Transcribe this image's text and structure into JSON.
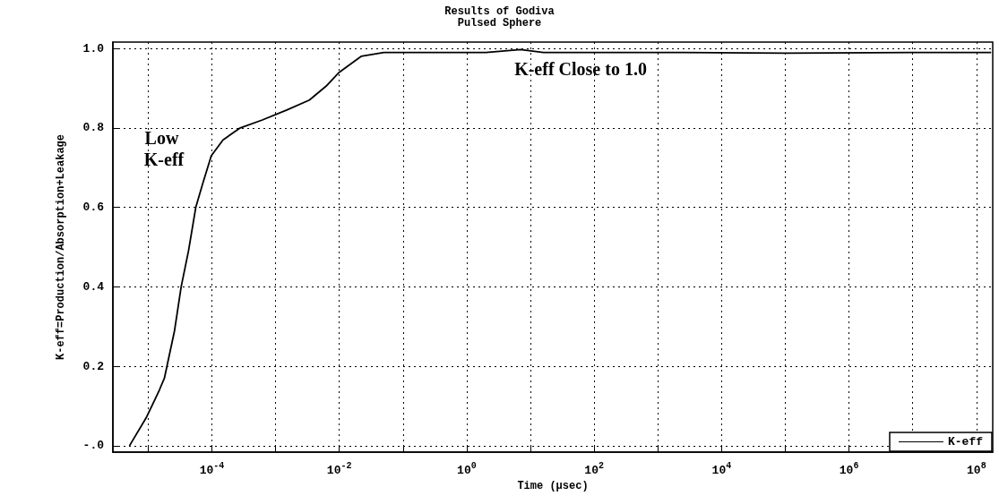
{
  "chart_data": {
    "type": "line",
    "title": "Results of Godiva",
    "subtitle": "Pulsed Sphere",
    "xlabel": "Time (μsec)",
    "ylabel": "K-eff=Production/Absorption+Leakage",
    "log": "x",
    "grid": true,
    "legend": "bottom right",
    "line_style": "solid",
    "marker": "none",
    "xlim": [
      2.8e-06,
      180000000.0
    ],
    "xticks": [
      {
        "value": 1e-05,
        "label": null
      },
      {
        "value": 0.0001,
        "label": "10$^{-4}$"
      },
      {
        "value": 0.001,
        "label": null
      },
      {
        "value": 0.01,
        "label": "10$^{-2}$"
      },
      {
        "value": 0.1,
        "label": null
      },
      {
        "value": 1,
        "label": "10$^{0}$"
      },
      {
        "value": 10,
        "label": null
      },
      {
        "value": 100,
        "label": "10$^{2}$"
      },
      {
        "value": 1000,
        "label": null
      },
      {
        "value": 10000.0,
        "label": "10$^{4}$"
      },
      {
        "value": 100000.0,
        "label": null
      },
      {
        "value": 1000000.0,
        "label": "10$^{6}$"
      },
      {
        "value": 10000000.0,
        "label": null
      },
      {
        "value": 100000000.0,
        "label": "10$^{8}$"
      }
    ],
    "ylim": [
      -0.016,
      1.016
    ],
    "yticks": [
      {
        "value": 0,
        "label": "-.0"
      },
      {
        "value": 0.2,
        "label": "0.2"
      },
      {
        "value": 0.4,
        "label": "0.4"
      },
      {
        "value": 0.6,
        "label": "0.6"
      },
      {
        "value": 0.8,
        "label": "0.8"
      },
      {
        "value": 1,
        "label": "1.0"
      }
    ],
    "annotations": [
      "Low K-eff",
      "K-eff Close to 1.0"
    ],
    "series": [
      {
        "name": "K-eff",
        "color": "#000000",
        "x": [
          5.1e-06,
          9.3e-06,
          1.5e-05,
          1.8e-05,
          2.6e-05,
          3.3e-05,
          4.3e-05,
          5.6e-05,
          7.2e-05,
          9.8e-05,
          0.00015,
          0.00028,
          0.00062,
          0.0015,
          0.0034,
          0.0062,
          0.01,
          0.022,
          0.05,
          0.16,
          2,
          7,
          16,
          1000,
          100000.0,
          10000000.0,
          170000000.0
        ],
        "values": [
          0.0,
          0.07,
          0.14,
          0.17,
          0.29,
          0.4,
          0.49,
          0.6,
          0.66,
          0.73,
          0.77,
          0.8,
          0.82,
          0.845,
          0.87,
          0.905,
          0.94,
          0.98,
          0.99,
          0.99,
          0.99,
          0.997,
          0.99,
          0.99,
          0.988,
          0.99,
          0.99
        ]
      }
    ]
  }
}
